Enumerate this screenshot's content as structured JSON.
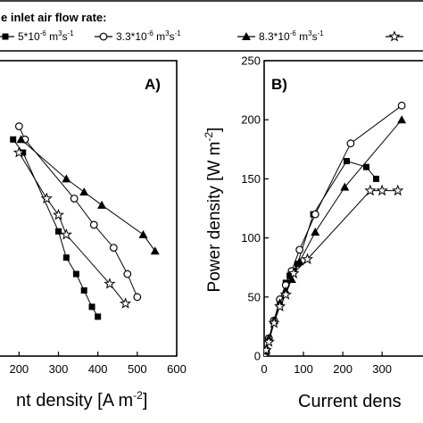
{
  "legend": {
    "title": "e inlet air flow rate:",
    "entries": [
      {
        "label": "5*10",
        "exp": "-6",
        "unit": " m",
        "unit_exp": "3",
        "unit2": "s",
        "unit2_exp": "-1",
        "marker": "square-filled"
      },
      {
        "label": "3.3*10",
        "exp": "-6",
        "unit": " m",
        "unit_exp": "3",
        "unit2": "s",
        "unit2_exp": "-1",
        "marker": "circle-open"
      },
      {
        "label": "8.3*10",
        "exp": "-6",
        "unit": " m",
        "unit_exp": "3",
        "unit2": "s",
        "unit2_exp": "-1",
        "marker": "triangle-filled"
      },
      {
        "label": "",
        "exp": "",
        "unit": "",
        "unit_exp": "",
        "unit2": "",
        "unit2_exp": "",
        "marker": "star-open"
      }
    ]
  },
  "chart_data": [
    {
      "type": "line",
      "panel_label": "A)",
      "xlabel": "nt density [A m",
      "xlabel_exp": "-2",
      "xlabel_suffix": "]",
      "ylabel": "",
      "xlim": [
        0,
        600
      ],
      "ylim": [
        0,
        0.9
      ],
      "xticks": [
        "200",
        "300",
        "400",
        "500",
        "600"
      ],
      "xtick_values": [
        200,
        300,
        400,
        500,
        600
      ],
      "series": [
        {
          "marker": "square-filled",
          "x": [
            185,
            210,
            300,
            320,
            345,
            365,
            385,
            400
          ],
          "y": [
            0.66,
            0.62,
            0.38,
            0.3,
            0.25,
            0.2,
            0.15,
            0.12
          ]
        },
        {
          "marker": "circle-open",
          "x": [
            200,
            215,
            340,
            390,
            440,
            475,
            500
          ],
          "y": [
            0.7,
            0.66,
            0.48,
            0.4,
            0.33,
            0.25,
            0.18
          ]
        },
        {
          "marker": "triangle-filled",
          "x": [
            205,
            320,
            365,
            410,
            515,
            545
          ],
          "y": [
            0.66,
            0.54,
            0.5,
            0.46,
            0.37,
            0.32
          ]
        },
        {
          "marker": "star-open",
          "x": [
            200,
            270,
            300,
            320,
            430,
            470
          ],
          "y": [
            0.62,
            0.48,
            0.43,
            0.37,
            0.22,
            0.16
          ]
        }
      ]
    },
    {
      "type": "line",
      "panel_label": "B)",
      "xlabel": "Current dens",
      "xlabel_exp": "",
      "xlabel_suffix": "",
      "ylabel": "Power density [W m",
      "ylabel_exp": "-2",
      "ylabel_suffix": "]",
      "xlim": [
        0,
        420
      ],
      "ylim": [
        0,
        250
      ],
      "xticks": [
        "0",
        "100",
        "200",
        "300"
      ],
      "xtick_values": [
        0,
        100,
        200,
        300
      ],
      "yticks": [
        "0",
        "50",
        "100",
        "150",
        "200",
        "250"
      ],
      "ytick_values": [
        0,
        50,
        100,
        150,
        200,
        250
      ],
      "series": [
        {
          "marker": "square-filled",
          "x": [
            0,
            5,
            12,
            25,
            40,
            55,
            65,
            75,
            85,
            125,
            210,
            260,
            285
          ],
          "y": [
            0,
            5,
            15,
            30,
            45,
            62,
            68,
            72,
            78,
            120,
            165,
            160,
            150
          ]
        },
        {
          "marker": "circle-open",
          "x": [
            0,
            5,
            12,
            25,
            40,
            55,
            70,
            90,
            130,
            220,
            350
          ],
          "y": [
            0,
            5,
            15,
            30,
            48,
            60,
            72,
            90,
            120,
            180,
            212
          ]
        },
        {
          "marker": "triangle-filled",
          "x": [
            0,
            5,
            12,
            25,
            40,
            55,
            70,
            90,
            130,
            205,
            350
          ],
          "y": [
            0,
            5,
            15,
            30,
            45,
            55,
            65,
            80,
            105,
            143,
            200
          ]
        },
        {
          "marker": "star-open",
          "x": [
            0,
            5,
            12,
            25,
            40,
            55,
            75,
            110,
            270,
            300,
            340
          ],
          "y": [
            0,
            5,
            12,
            28,
            42,
            52,
            70,
            82,
            140,
            140,
            140
          ]
        }
      ]
    }
  ]
}
